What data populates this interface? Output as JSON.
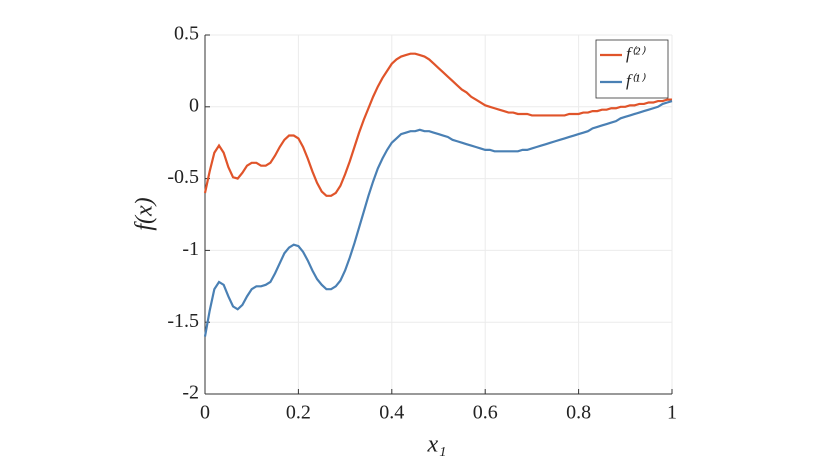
{
  "chart_data": {
    "type": "line",
    "xlabel": "x₁",
    "ylabel": "f(x)",
    "x": [
      0,
      0.01,
      0.02,
      0.03,
      0.04,
      0.05,
      0.06,
      0.07,
      0.08,
      0.09,
      0.1,
      0.11,
      0.12,
      0.13,
      0.14,
      0.15,
      0.16,
      0.17,
      0.18,
      0.19,
      0.2,
      0.21,
      0.22,
      0.23,
      0.24,
      0.25,
      0.26,
      0.27,
      0.28,
      0.29,
      0.3,
      0.31,
      0.32,
      0.33,
      0.34,
      0.35,
      0.36,
      0.37,
      0.38,
      0.39,
      0.4,
      0.41,
      0.42,
      0.43,
      0.44,
      0.45,
      0.46,
      0.47,
      0.48,
      0.49,
      0.5,
      0.51,
      0.52,
      0.53,
      0.54,
      0.55,
      0.56,
      0.57,
      0.58,
      0.59,
      0.6,
      0.61,
      0.62,
      0.63,
      0.64,
      0.65,
      0.66,
      0.67,
      0.68,
      0.69,
      0.7,
      0.71,
      0.72,
      0.73,
      0.74,
      0.75,
      0.76,
      0.77,
      0.78,
      0.79,
      0.8,
      0.81,
      0.82,
      0.83,
      0.84,
      0.85,
      0.86,
      0.87,
      0.88,
      0.89,
      0.9,
      0.91,
      0.92,
      0.93,
      0.94,
      0.95,
      0.96,
      0.97,
      0.98,
      0.99,
      1
    ],
    "series": [
      {
        "name": "f⁽²⁾",
        "color": "#e0542a",
        "values": [
          -0.6,
          -0.45,
          -0.32,
          -0.27,
          -0.32,
          -0.42,
          -0.49,
          -0.5,
          -0.46,
          -0.41,
          -0.39,
          -0.39,
          -0.41,
          -0.41,
          -0.39,
          -0.34,
          -0.28,
          -0.23,
          -0.2,
          -0.2,
          -0.22,
          -0.28,
          -0.36,
          -0.45,
          -0.53,
          -0.59,
          -0.62,
          -0.62,
          -0.6,
          -0.55,
          -0.47,
          -0.38,
          -0.28,
          -0.18,
          -0.09,
          -0.01,
          0.07,
          0.14,
          0.2,
          0.25,
          0.3,
          0.33,
          0.35,
          0.36,
          0.37,
          0.37,
          0.36,
          0.35,
          0.33,
          0.3,
          0.27,
          0.24,
          0.21,
          0.18,
          0.15,
          0.12,
          0.1,
          0.07,
          0.05,
          0.03,
          0.01,
          0,
          -0.01,
          -0.02,
          -0.03,
          -0.04,
          -0.04,
          -0.05,
          -0.05,
          -0.05,
          -0.06,
          -0.06,
          -0.06,
          -0.06,
          -0.06,
          -0.06,
          -0.06,
          -0.06,
          -0.05,
          -0.05,
          -0.05,
          -0.04,
          -0.04,
          -0.03,
          -0.03,
          -0.02,
          -0.02,
          -0.01,
          -0.01,
          0,
          0,
          0.01,
          0.01,
          0.02,
          0.02,
          0.03,
          0.03,
          0.04,
          0.04,
          0.05,
          0.05
        ]
      },
      {
        "name": "f⁽¹⁾",
        "color": "#4a80b4",
        "values": [
          -1.6,
          -1.42,
          -1.27,
          -1.22,
          -1.24,
          -1.32,
          -1.39,
          -1.41,
          -1.38,
          -1.32,
          -1.27,
          -1.25,
          -1.25,
          -1.24,
          -1.22,
          -1.16,
          -1.09,
          -1.02,
          -0.98,
          -0.96,
          -0.97,
          -1.01,
          -1.07,
          -1.14,
          -1.2,
          -1.24,
          -1.27,
          -1.27,
          -1.25,
          -1.21,
          -1.14,
          -1.05,
          -0.95,
          -0.84,
          -0.73,
          -0.62,
          -0.52,
          -0.43,
          -0.36,
          -0.3,
          -0.25,
          -0.22,
          -0.19,
          -0.18,
          -0.17,
          -0.17,
          -0.16,
          -0.17,
          -0.17,
          -0.18,
          -0.19,
          -0.2,
          -0.21,
          -0.23,
          -0.24,
          -0.25,
          -0.26,
          -0.27,
          -0.28,
          -0.29,
          -0.3,
          -0.3,
          -0.31,
          -0.31,
          -0.31,
          -0.31,
          -0.31,
          -0.31,
          -0.3,
          -0.3,
          -0.29,
          -0.28,
          -0.27,
          -0.26,
          -0.25,
          -0.24,
          -0.23,
          -0.22,
          -0.21,
          -0.2,
          -0.19,
          -0.18,
          -0.17,
          -0.15,
          -0.14,
          -0.13,
          -0.12,
          -0.11,
          -0.1,
          -0.08,
          -0.07,
          -0.06,
          -0.05,
          -0.04,
          -0.03,
          -0.02,
          -0.01,
          0,
          0.02,
          0.03,
          0.04
        ]
      }
    ],
    "xlim": [
      0,
      1
    ],
    "xticks": [
      0,
      0.2,
      0.4,
      0.6,
      0.8,
      1
    ],
    "ylim": [
      -2,
      0.5
    ],
    "yticks": [
      -2,
      -1.5,
      -1,
      -0.5,
      0,
      0.5
    ],
    "grid": true,
    "legend": "top-right"
  }
}
